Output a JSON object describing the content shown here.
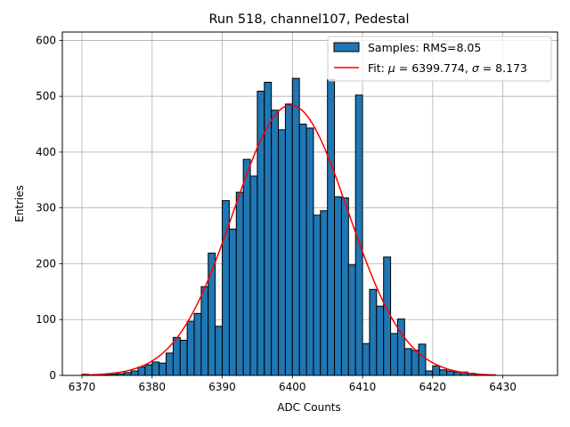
{
  "chart_data": {
    "type": "bar",
    "title": "Run 518, channel107, Pedestal",
    "xlabel": "ADC Counts",
    "ylabel": "Entries",
    "xlim": [
      6367.2,
      6437.8
    ],
    "ylim": [
      0,
      615
    ],
    "xticks": [
      6370,
      6380,
      6390,
      6400,
      6410,
      6420,
      6430
    ],
    "yticks": [
      0,
      100,
      200,
      300,
      400,
      500,
      600
    ],
    "grid": true,
    "legend_position": "top-right",
    "bins": {
      "start": 6370,
      "width": 1
    },
    "series": [
      {
        "name": "Samples: RMS=8.05",
        "type": "histogram",
        "color": "#1f77b4",
        "edgecolor": "#000000",
        "values": [
          2,
          0,
          0,
          1,
          2,
          3,
          5,
          8,
          15,
          19,
          24,
          22,
          40,
          68,
          63,
          97,
          111,
          159,
          219,
          88,
          313,
          262,
          328,
          387,
          357,
          509,
          525,
          475,
          440,
          486,
          532,
          450,
          443,
          287,
          295,
          530,
          320,
          318,
          198,
          502,
          57,
          154,
          124,
          212,
          75,
          101,
          48,
          45,
          56,
          8,
          17,
          10,
          8,
          6,
          6,
          4,
          2,
          1,
          1,
          0
        ]
      },
      {
        "name": "Fit: $\\mu$ = 6399.774, $\\sigma$ = 8.173",
        "type": "line",
        "color": "#ff0000",
        "fit": {
          "mu": 6399.774,
          "sigma": 8.173,
          "amplitude": 484,
          "x_range": [
            6370,
            6429
          ]
        }
      }
    ]
  },
  "legend": {
    "hist_label": "Samples: RMS=8.05",
    "fit_prefix": "Fit: ",
    "mu_symbol": "μ",
    "mu_value": " = 6399.774, ",
    "sigma_symbol": "σ",
    "sigma_value": " = 8.173"
  }
}
